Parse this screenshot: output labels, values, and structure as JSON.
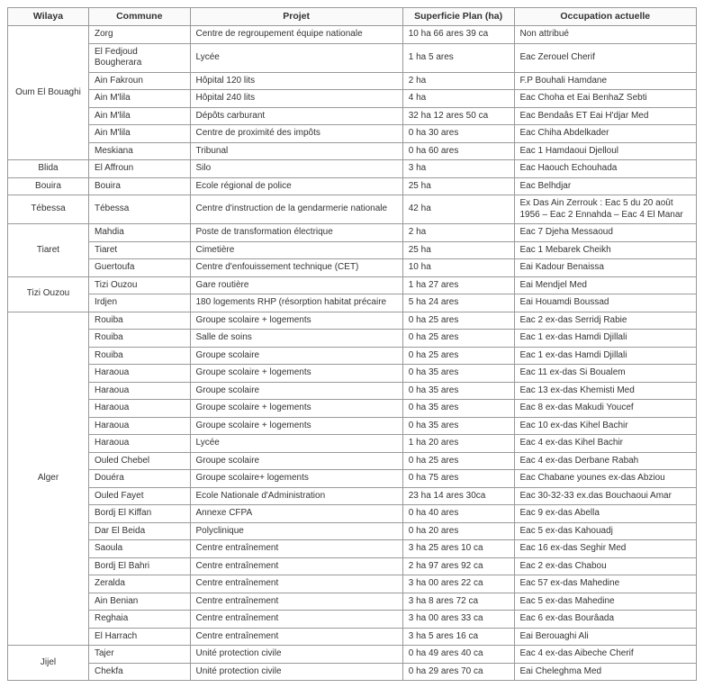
{
  "headers": {
    "wilaya": "Wilaya",
    "commune": "Commune",
    "projet": "Projet",
    "superficie": "Superficie Plan (ha)",
    "occupation": "Occupation actuelle"
  },
  "groups": [
    {
      "wilaya": "Oum El  Bouaghi",
      "rows": [
        {
          "commune": "Zorg",
          "projet": "Centre de regroupement équipe nationale",
          "superficie": "10 ha 66 ares 39 ca",
          "occupation": "Non attribué"
        },
        {
          "commune": "El Fedjoud Bougherara",
          "projet": "Lycée",
          "superficie": "1 ha 5 ares",
          "occupation": "Eac Zerouel Cherif"
        },
        {
          "commune": "Ain Fakroun",
          "projet": "Hôpital 120 lits",
          "superficie": "2 ha",
          "occupation": "F.P Bouhali Hamdane"
        },
        {
          "commune": "Ain M'lila",
          "projet": "Hôpital 240 lits",
          "superficie": "4 ha",
          "occupation": "Eac Choha et Eai BenhaZ Sebti"
        },
        {
          "commune": "Ain M'lila",
          "projet": "Dépôts carburant",
          "superficie": "32 ha 12 ares 50 ca",
          "occupation": "Eac Bendaâs ET Eai H'djar Med"
        },
        {
          "commune": "Ain M'lila",
          "projet": "Centre de proximité des impôts",
          "superficie": "0 ha 30 ares",
          "occupation": "Eac Chiha Abdelkader"
        },
        {
          "commune": "Meskiana",
          "projet": "Tribunal",
          "superficie": "0 ha 60 ares",
          "occupation": "Eac 1 Hamdaoui Djelloul"
        }
      ]
    },
    {
      "wilaya": "Blida",
      "rows": [
        {
          "commune": "El Affroun",
          "projet": "Silo",
          "superficie": "3 ha",
          "occupation": "Eac  Haouch Echouhada"
        }
      ]
    },
    {
      "wilaya": "Bouira",
      "rows": [
        {
          "commune": "Bouira",
          "projet": "Ecole régional de police",
          "superficie": "25 ha",
          "occupation": "Eac Belhdjar"
        }
      ]
    },
    {
      "wilaya": "Tébessa",
      "rows": [
        {
          "commune": "Tébessa",
          "projet": "Centre d'instruction de la gendarmerie nationale",
          "superficie": "42 ha",
          "occupation": "Ex Das Ain Zerrouk : Eac 5 du 20 août 1956 – Eac 2 Ennahda – Eac 4 El Manar"
        }
      ]
    },
    {
      "wilaya": "Tiaret",
      "rows": [
        {
          "commune": "Mahdia",
          "projet": "Poste de transformation électrique",
          "superficie": "2 ha",
          "occupation": "Eac 7 Djeha Messaoud"
        },
        {
          "commune": "Tiaret",
          "projet": "Cimetière",
          "superficie": "25 ha",
          "occupation": "Eac 1 Mebarek Cheikh"
        },
        {
          "commune": "Guertoufa",
          "projet": "Centre d'enfouissement technique (CET)",
          "superficie": "10 ha",
          "occupation": "Eai Kadour Benaissa"
        }
      ]
    },
    {
      "wilaya": "Tizi Ouzou",
      "rows": [
        {
          "commune": "Tizi Ouzou",
          "projet": "Gare routière",
          "superficie": "1 ha 27 ares",
          "occupation": "Eai Mendjel Med"
        },
        {
          "commune": "Irdjen",
          "projet": "180 logements RHP (résorption habitat précaire",
          "superficie": "5 ha 24 ares",
          "occupation": "Eai Houamdi Boussad"
        }
      ]
    },
    {
      "wilaya": "Alger",
      "rows": [
        {
          "commune": "Rouiba",
          "projet": "Groupe scolaire + logements",
          "superficie": "0 ha 25 ares",
          "occupation": "Eac 2 ex-das Serridj Rabie"
        },
        {
          "commune": "Rouiba",
          "projet": "Salle de soins",
          "superficie": "0 ha 25 ares",
          "occupation": "Eac 1 ex-das Hamdi Djillali"
        },
        {
          "commune": "Rouiba",
          "projet": "Groupe scolaire",
          "superficie": "0 ha 25 ares",
          "occupation": "Eac 1 ex-das Hamdi Djillali"
        },
        {
          "commune": "Haraoua",
          "projet": "Groupe scolaire + logements",
          "superficie": "0 ha 35 ares",
          "occupation": "Eac 11 ex-das Si Boualem"
        },
        {
          "commune": "Haraoua",
          "projet": "Groupe scolaire",
          "superficie": "0 ha 35 ares",
          "occupation": "Eac 13 ex-das Khemisti Med"
        },
        {
          "commune": "Haraoua",
          "projet": "Groupe scolaire + logements",
          "superficie": "0 ha 35 ares",
          "occupation": "Eac 8 ex-das Makudi Youcef"
        },
        {
          "commune": "Haraoua",
          "projet": "Groupe scolaire + logements",
          "superficie": "0 ha 35 ares",
          "occupation": "Eac 10 ex-das Kihel Bachir"
        },
        {
          "commune": "Haraoua",
          "projet": "Lycée",
          "superficie": "1 ha 20 ares",
          "occupation": "Eac 4 ex-das Kihel Bachir"
        },
        {
          "commune": "Ouled Chebel",
          "projet": "Groupe scolaire",
          "superficie": "0 ha 25 ares",
          "occupation": "Eac 4 ex-das Derbane Rabah"
        },
        {
          "commune": "Douéra",
          "projet": "Groupe scolaire+ logements",
          "superficie": "0 ha 75 ares",
          "occupation": "Eac Chabane younes ex-das Abziou"
        },
        {
          "commune": "Ouled Fayet",
          "projet": "Ecole Nationale d'Administration",
          "superficie": "23 ha 14 ares 30ca",
          "occupation": "Eac 30-32-33 ex.das Bouchaoui Amar"
        },
        {
          "commune": "Bordj El Kiffan",
          "projet": "Annexe CFPA",
          "superficie": "0 ha 40 ares",
          "occupation": "Eac 9 ex-das Abella"
        },
        {
          "commune": "Dar El Beida",
          "projet": "Polyclinique",
          "superficie": "0 ha 20 ares",
          "occupation": "Eac 5 ex-das Kahouadj"
        },
        {
          "commune": "Saoula",
          "projet": "Centre entraînement",
          "superficie": "3 ha 25 ares 10 ca",
          "occupation": "Eac 16 ex-das Seghir Med"
        },
        {
          "commune": "Bordj El Bahri",
          "projet": "Centre entraînement",
          "superficie": "2 ha 97 ares 92 ca",
          "occupation": "Eac 2 ex-das Chabou"
        },
        {
          "commune": "Zeralda",
          "projet": "Centre entraînement",
          "superficie": "3 ha 00 ares 22 ca",
          "occupation": "Eac 57 ex-das  Mahedine"
        },
        {
          "commune": "Ain Benian",
          "projet": "Centre entraînement",
          "superficie": "3 ha 8 ares 72 ca",
          "occupation": "Eac 5 ex-das  Mahedine"
        },
        {
          "commune": "Reghaia",
          "projet": "Centre entraînement",
          "superficie": "3 ha 00 ares 33 ca",
          "occupation": "Eac 6 ex-das  Bourâada"
        },
        {
          "commune": "El Harrach",
          "projet": "Centre entraînement",
          "superficie": "3 ha 5 ares 16 ca",
          "occupation": "Eai Berouaghi Ali"
        }
      ]
    },
    {
      "wilaya": "Jijel",
      "rows": [
        {
          "commune": "Tajer",
          "projet": "Unité protection civile",
          "superficie": "0 ha 49 ares 40 ca",
          "occupation": "Eac 4 ex-das Aibeche Cherif"
        },
        {
          "commune": "Chekfa",
          "projet": "Unité protection civile",
          "superficie": "0 ha 29 ares 70 ca",
          "occupation": "Eai Cheleghma Med"
        }
      ]
    }
  ]
}
